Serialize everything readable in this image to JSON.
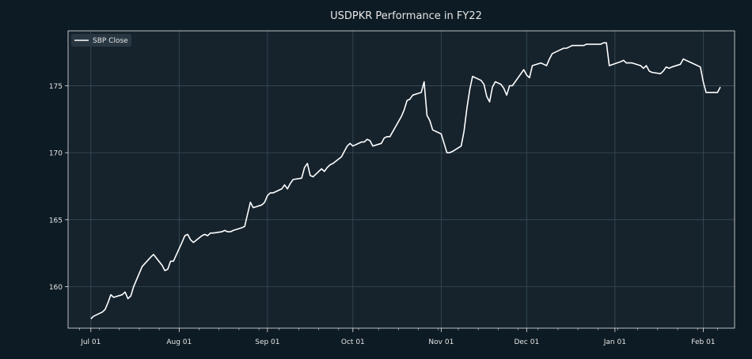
{
  "colors": {
    "figure_bg": "#0d1b24",
    "plot_bg": "#16232d",
    "grid": "#3b4d58",
    "text": "#e6e6e6",
    "line": "#ffffff",
    "legend_bg": "#2a3a45"
  },
  "chart_data": {
    "type": "line",
    "title": "USDPKR Performance in FY22",
    "xlabel": "",
    "ylabel": "",
    "grid": true,
    "legend": "top-left",
    "xlim": [
      "2021-06-23",
      "2022-02-12"
    ],
    "ylim": [
      156.9,
      179.1
    ],
    "yticks": [
      160,
      165,
      170,
      175
    ],
    "xticks": [
      {
        "date": "2021-07-01",
        "label": "Jul 01"
      },
      {
        "date": "2021-08-01",
        "label": "Aug 01"
      },
      {
        "date": "2021-09-01",
        "label": "Sep 01"
      },
      {
        "date": "2021-10-01",
        "label": "Oct 01"
      },
      {
        "date": "2021-11-01",
        "label": "Nov 01"
      },
      {
        "date": "2021-12-01",
        "label": "Dec 01"
      },
      {
        "date": "2022-01-01",
        "label": "Jan 01"
      },
      {
        "date": "2022-02-01",
        "label": "Feb 01"
      }
    ],
    "series": [
      {
        "name": "SBP Close",
        "color": "#ffffff",
        "points": [
          [
            "2021-07-01",
            157.6
          ],
          [
            "2021-07-02",
            157.8
          ],
          [
            "2021-07-05",
            158.1
          ],
          [
            "2021-07-06",
            158.3
          ],
          [
            "2021-07-07",
            158.8
          ],
          [
            "2021-07-08",
            159.4
          ],
          [
            "2021-07-09",
            159.2
          ],
          [
            "2021-07-12",
            159.4
          ],
          [
            "2021-07-13",
            159.6
          ],
          [
            "2021-07-14",
            159.1
          ],
          [
            "2021-07-15",
            159.3
          ],
          [
            "2021-07-16",
            160.0
          ],
          [
            "2021-07-19",
            161.5
          ],
          [
            "2021-07-22",
            162.2
          ],
          [
            "2021-07-23",
            162.4
          ],
          [
            "2021-07-26",
            161.6
          ],
          [
            "2021-07-27",
            161.2
          ],
          [
            "2021-07-28",
            161.3
          ],
          [
            "2021-07-29",
            161.9
          ],
          [
            "2021-07-30",
            161.9
          ],
          [
            "2021-08-02",
            163.3
          ],
          [
            "2021-08-03",
            163.8
          ],
          [
            "2021-08-04",
            163.9
          ],
          [
            "2021-08-05",
            163.5
          ],
          [
            "2021-08-06",
            163.3
          ],
          [
            "2021-08-09",
            163.8
          ],
          [
            "2021-08-10",
            163.9
          ],
          [
            "2021-08-11",
            163.8
          ],
          [
            "2021-08-12",
            164.0
          ],
          [
            "2021-08-13",
            164.0
          ],
          [
            "2021-08-16",
            164.1
          ],
          [
            "2021-08-17",
            164.2
          ],
          [
            "2021-08-18",
            164.1
          ],
          [
            "2021-08-19",
            164.1
          ],
          [
            "2021-08-20",
            164.2
          ],
          [
            "2021-08-23",
            164.4
          ],
          [
            "2021-08-24",
            164.5
          ],
          [
            "2021-08-25",
            165.4
          ],
          [
            "2021-08-26",
            166.3
          ],
          [
            "2021-08-27",
            165.9
          ],
          [
            "2021-08-30",
            166.1
          ],
          [
            "2021-08-31",
            166.3
          ],
          [
            "2021-09-01",
            166.8
          ],
          [
            "2021-09-02",
            167.0
          ],
          [
            "2021-09-03",
            167.0
          ],
          [
            "2021-09-06",
            167.3
          ],
          [
            "2021-09-07",
            167.6
          ],
          [
            "2021-09-08",
            167.3
          ],
          [
            "2021-09-09",
            167.7
          ],
          [
            "2021-09-10",
            168.0
          ],
          [
            "2021-09-13",
            168.1
          ],
          [
            "2021-09-14",
            168.9
          ],
          [
            "2021-09-15",
            169.2
          ],
          [
            "2021-09-16",
            168.3
          ],
          [
            "2021-09-17",
            168.2
          ],
          [
            "2021-09-20",
            168.8
          ],
          [
            "2021-09-21",
            168.6
          ],
          [
            "2021-09-22",
            168.9
          ],
          [
            "2021-09-23",
            169.1
          ],
          [
            "2021-09-24",
            169.2
          ],
          [
            "2021-09-27",
            169.7
          ],
          [
            "2021-09-28",
            170.1
          ],
          [
            "2021-09-29",
            170.5
          ],
          [
            "2021-09-30",
            170.7
          ],
          [
            "2021-10-01",
            170.5
          ],
          [
            "2021-10-04",
            170.8
          ],
          [
            "2021-10-05",
            170.8
          ],
          [
            "2021-10-06",
            171.0
          ],
          [
            "2021-10-07",
            170.9
          ],
          [
            "2021-10-08",
            170.5
          ],
          [
            "2021-10-11",
            170.7
          ],
          [
            "2021-10-12",
            171.1
          ],
          [
            "2021-10-13",
            171.2
          ],
          [
            "2021-10-14",
            171.2
          ],
          [
            "2021-10-18",
            172.7
          ],
          [
            "2021-10-19",
            173.2
          ],
          [
            "2021-10-20",
            173.9
          ],
          [
            "2021-10-21",
            174.0
          ],
          [
            "2021-10-22",
            174.3
          ],
          [
            "2021-10-25",
            174.5
          ],
          [
            "2021-10-26",
            175.3
          ],
          [
            "2021-10-27",
            172.8
          ],
          [
            "2021-10-28",
            172.4
          ],
          [
            "2021-10-29",
            171.7
          ],
          [
            "2021-11-01",
            171.4
          ],
          [
            "2021-11-02",
            170.7
          ],
          [
            "2021-11-03",
            170.0
          ],
          [
            "2021-11-04",
            170.0
          ],
          [
            "2021-11-05",
            170.1
          ],
          [
            "2021-11-08",
            170.5
          ],
          [
            "2021-11-09",
            171.6
          ],
          [
            "2021-11-10",
            173.3
          ],
          [
            "2021-11-11",
            174.7
          ],
          [
            "2021-11-12",
            175.7
          ],
          [
            "2021-11-15",
            175.4
          ],
          [
            "2021-11-16",
            175.1
          ],
          [
            "2021-11-17",
            174.2
          ],
          [
            "2021-11-18",
            173.8
          ],
          [
            "2021-11-19",
            174.9
          ],
          [
            "2021-11-20",
            175.3
          ],
          [
            "2021-11-22",
            175.1
          ],
          [
            "2021-11-23",
            174.8
          ],
          [
            "2021-11-24",
            174.3
          ],
          [
            "2021-11-25",
            175.0
          ],
          [
            "2021-11-26",
            175.0
          ],
          [
            "2021-11-29",
            175.9
          ],
          [
            "2021-11-30",
            176.2
          ],
          [
            "2021-12-01",
            175.8
          ],
          [
            "2021-12-02",
            175.6
          ],
          [
            "2021-12-03",
            176.5
          ],
          [
            "2021-12-06",
            176.7
          ],
          [
            "2021-12-07",
            176.6
          ],
          [
            "2021-12-08",
            176.5
          ],
          [
            "2021-12-09",
            177.0
          ],
          [
            "2021-12-10",
            177.4
          ],
          [
            "2021-12-13",
            177.7
          ],
          [
            "2021-12-14",
            177.8
          ],
          [
            "2021-12-15",
            177.8
          ],
          [
            "2021-12-16",
            177.9
          ],
          [
            "2021-12-17",
            178.0
          ],
          [
            "2021-12-20",
            178.0
          ],
          [
            "2021-12-21",
            178.0
          ],
          [
            "2021-12-22",
            178.1
          ],
          [
            "2021-12-23",
            178.1
          ],
          [
            "2021-12-27",
            178.1
          ],
          [
            "2021-12-28",
            178.2
          ],
          [
            "2021-12-29",
            178.2
          ],
          [
            "2021-12-30",
            176.5
          ],
          [
            "2022-01-03",
            176.8
          ],
          [
            "2022-01-04",
            176.9
          ],
          [
            "2022-01-05",
            176.7
          ],
          [
            "2022-01-06",
            176.7
          ],
          [
            "2022-01-07",
            176.7
          ],
          [
            "2022-01-10",
            176.5
          ],
          [
            "2022-01-11",
            176.3
          ],
          [
            "2022-01-12",
            176.5
          ],
          [
            "2022-01-13",
            176.1
          ],
          [
            "2022-01-14",
            176.0
          ],
          [
            "2022-01-17",
            175.9
          ],
          [
            "2022-01-18",
            176.1
          ],
          [
            "2022-01-19",
            176.4
          ],
          [
            "2022-01-20",
            176.3
          ],
          [
            "2022-01-21",
            176.4
          ],
          [
            "2022-01-24",
            176.6
          ],
          [
            "2022-01-25",
            177.0
          ],
          [
            "2022-01-26",
            176.9
          ],
          [
            "2022-01-27",
            176.8
          ],
          [
            "2022-01-28",
            176.7
          ],
          [
            "2022-01-31",
            176.4
          ],
          [
            "2022-02-01",
            175.3
          ],
          [
            "2022-02-02",
            174.5
          ],
          [
            "2022-02-03",
            174.5
          ],
          [
            "2022-02-04",
            174.5
          ],
          [
            "2022-02-06",
            174.5
          ],
          [
            "2022-02-07",
            174.9
          ]
        ]
      }
    ]
  }
}
